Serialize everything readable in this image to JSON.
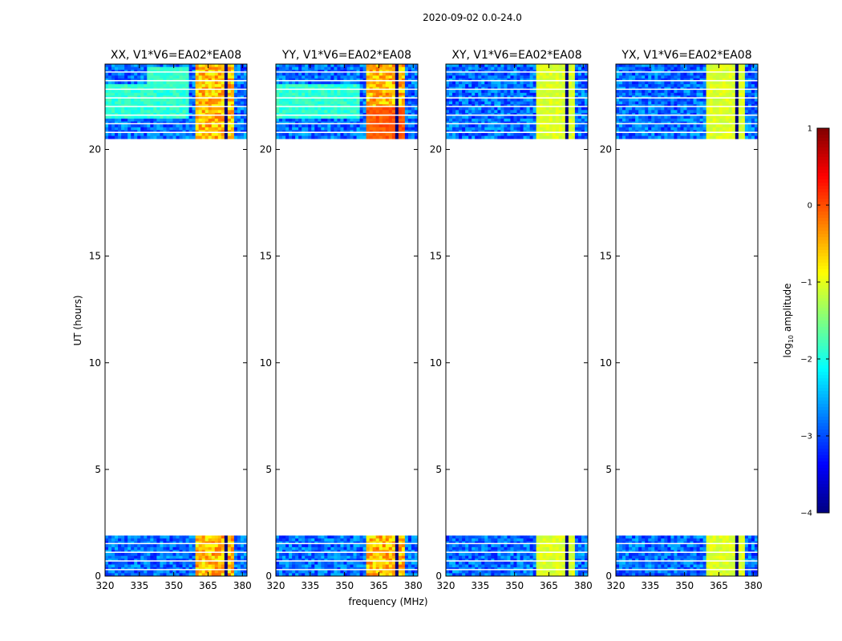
{
  "figure": {
    "suptitle": "2020-09-02 0.0-24.0",
    "shared_xlabel": "frequency (MHz)",
    "shared_ylabel": "UT (hours)"
  },
  "colors": {
    "axes_frame": "#000000",
    "background": "#ffffff",
    "gap_line": "#ffffff"
  },
  "chart_data": {
    "type": "heatmap",
    "panels": [
      {
        "title": "XX, V1*V6=EA02*EA08",
        "pol": "XX"
      },
      {
        "title": "YY, V1*V6=EA02*EA08",
        "pol": "YY"
      },
      {
        "title": "XY, V1*V6=EA02*EA08",
        "pol": "XY"
      },
      {
        "title": "YX, V1*V6=EA02*EA08",
        "pol": "YX"
      }
    ],
    "xlabel": "frequency (MHz)",
    "ylabel": "UT (hours)",
    "xlim": [
      320,
      382
    ],
    "ylim": [
      0,
      24
    ],
    "xticks": [
      320,
      335,
      350,
      365,
      380
    ],
    "yticks": [
      0,
      5,
      10,
      15,
      20
    ],
    "data_time_ranges_hours": [
      [
        0.0,
        1.9
      ],
      [
        20.5,
        24.0
      ]
    ],
    "bright_band_mhz": [
      359,
      377
    ],
    "colorbar": {
      "label": "log10 amplitude",
      "label_main": "log",
      "label_sub": "10",
      "label_rest": " amplitude",
      "range": [
        -4,
        1
      ],
      "ticks": [
        -4,
        -3,
        -2,
        -1,
        0,
        1
      ],
      "tick_labels": [
        "−4",
        "−3",
        "−2",
        "−1",
        "0",
        "1"
      ],
      "colormap": "jet"
    }
  }
}
